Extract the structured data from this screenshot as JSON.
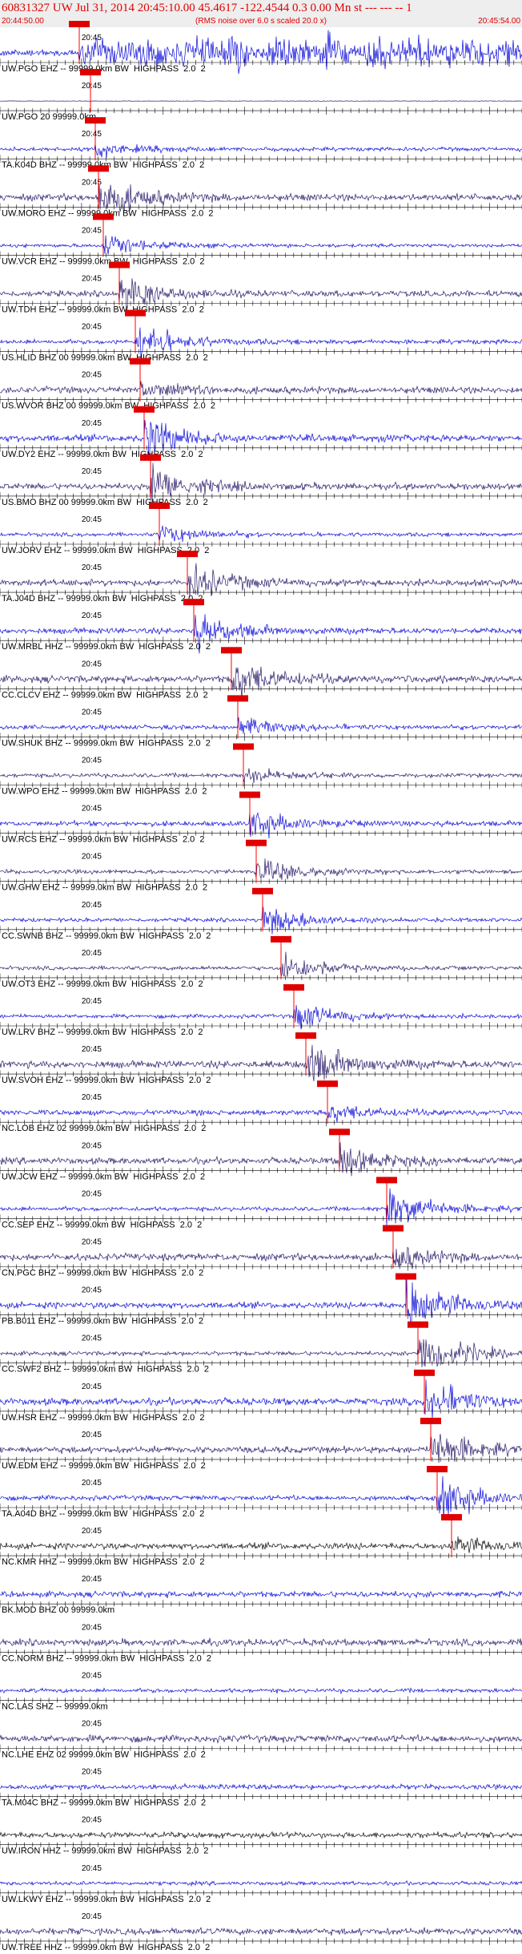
{
  "header": {
    "title": "60831327 UW Jul 31, 2014 20:45:10.00   45.4617 -122.4544   0.3 0.00 Mn st --- --- --   1",
    "start": "20:44:50.00",
    "note": "(RMS noise over 6.0 s scaled 20.0 x)",
    "end": "20:45:54.00"
  },
  "traces": [
    {
      "time": "20:45",
      "label": "UW.PGO EHZ -- 99999.0km BW  HIGHPASS  2.0  2"
    },
    {
      "time": "20:45",
      "label": "UW.PGO 20 99999.0km"
    },
    {
      "time": "20:45",
      "label": "TA.K04D BHZ -- 99999.0km BW  HIGHPASS  2.0  2"
    },
    {
      "time": "20:45",
      "label": "UW.MORO EHZ -- 99999.0km BW  HIGHPASS  2.0  2"
    },
    {
      "time": "20:45",
      "label": "UW.VCR EHZ -- 99999.0km BW  HIGHPASS  2.0  2"
    },
    {
      "time": "20:45",
      "label": "UW.TDH EHZ -- 99999.0km BW  HIGHPASS  2.0  2"
    },
    {
      "time": "20:45",
      "label": "US.HLID BHZ 00 99999.0km BW  HIGHPASS  2.0  2"
    },
    {
      "time": "20:45",
      "label": "US.WVOR BHZ 00 99999.0km BW  HIGHPASS  2.0  2"
    },
    {
      "time": "20:45",
      "label": "UW.DY2 EHZ -- 99999.0km BW  HIGHPASS  2.0  2"
    },
    {
      "time": "20:45",
      "label": "US.BMO BHZ 00 99999.0km BW  HIGHPASS  2.0  2"
    },
    {
      "time": "20:45",
      "label": "UW.JORV EHZ -- 99999.0km BW  HIGHPASS  2.0  2"
    },
    {
      "time": "20:45",
      "label": "TA.J04D BHZ -- 99999.0km BW  HIGHPASS  2.0  2"
    },
    {
      "time": "20:45",
      "label": "UW.MRBL HHZ -- 99999.0km BW  HIGHPASS  2.0  2"
    },
    {
      "time": "20:45",
      "label": "CC.CLCV EHZ -- 99999.0km BW  HIGHPASS  2.0  2"
    },
    {
      "time": "20:45",
      "label": "UW.SHUK BHZ -- 99999.0km BW  HIGHPASS  2.0  2"
    },
    {
      "time": "20:45",
      "label": "UW.WPO EHZ -- 99999.0km BW  HIGHPASS  2.0  2"
    },
    {
      "time": "20:45",
      "label": "UW.RCS EHZ -- 99999.0km BW  HIGHPASS  2.0  2"
    },
    {
      "time": "20:45",
      "label": "UW.GHW EHZ -- 99999.0km BW  HIGHPASS  2.0  2"
    },
    {
      "time": "20:45",
      "label": "CC.SWNB BHZ -- 99999.0km BW  HIGHPASS  2.0  2"
    },
    {
      "time": "20:45",
      "label": "UW.OT3 EHZ -- 99999.0km BW  HIGHPASS  2.0  2"
    },
    {
      "time": "20:45",
      "label": "UW.LRV BHZ -- 99999.0km BW  HIGHPASS  2.0  2"
    },
    {
      "time": "20:45",
      "label": "UW.SVOH EHZ -- 99999.0km BW  HIGHPASS  2.0  2"
    },
    {
      "time": "20:45",
      "label": "NC.LOB EHZ 02 99999.0km BW  HIGHPASS  2.0  2"
    },
    {
      "time": "20:45",
      "label": "UW.JCW EHZ -- 99999.0km BW  HIGHPASS  2.0  2"
    },
    {
      "time": "20:45",
      "label": "CC.SEP EHZ -- 99999.0km BW  HIGHPASS  2.0  2"
    },
    {
      "time": "20:45",
      "label": "CN.PGC BHZ -- 99999.0km BW  HIGHPASS  2.0  2"
    },
    {
      "time": "20:45",
      "label": "PB.B011 EHZ -- 99999.0km BW  HIGHPASS  2.0  2"
    },
    {
      "time": "20:45",
      "label": "CC.SWF2 BHZ -- 99999.0km BW  HIGHPASS  2.0  2"
    },
    {
      "time": "20:45",
      "label": "UW.HSR EHZ -- 99999.0km BW  HIGHPASS  2.0  2"
    },
    {
      "time": "20:45",
      "label": "UW.EDM EHZ -- 99999.0km BW  HIGHPASS  2.0  2"
    },
    {
      "time": "20:45",
      "label": "TA.A04D BHZ -- 99999.0km BW  HIGHPASS  2.0  2"
    },
    {
      "time": "20:45",
      "label": "NC.KMR HHZ -- 99999.0km BW  HIGHPASS  2.0  2"
    },
    {
      "time": "20:45",
      "label": "BK.MOD BHZ 00 99999.0km"
    },
    {
      "time": "20:45",
      "label": "CC.NORM BHZ -- 99999.0km BW  HIGHPASS  2.0  2"
    },
    {
      "time": "20:45",
      "label": "NC.LAS SHZ -- 99999.0km"
    },
    {
      "time": "20:45",
      "label": "NC.LHE EHZ 02 99999.0km BW  HIGHPASS  2.0  2"
    },
    {
      "time": "20:45",
      "label": "TA.M04C BHZ -- 99999.0km BW  HIGHPASS  2.0  2"
    },
    {
      "time": "20:45",
      "label": "UW.IRON HHZ -- 99999.0km BW  HIGHPASS  2.0  2"
    },
    {
      "time": "20:45",
      "label": "UW.LKWY EHZ -- 99999.0km BW  HIGHPASS  2.0  2"
    },
    {
      "time": "20:45",
      "label": "UW.TREE HHZ -- 99999.0km BW  HIGHPASS  2.0  2"
    }
  ]
}
